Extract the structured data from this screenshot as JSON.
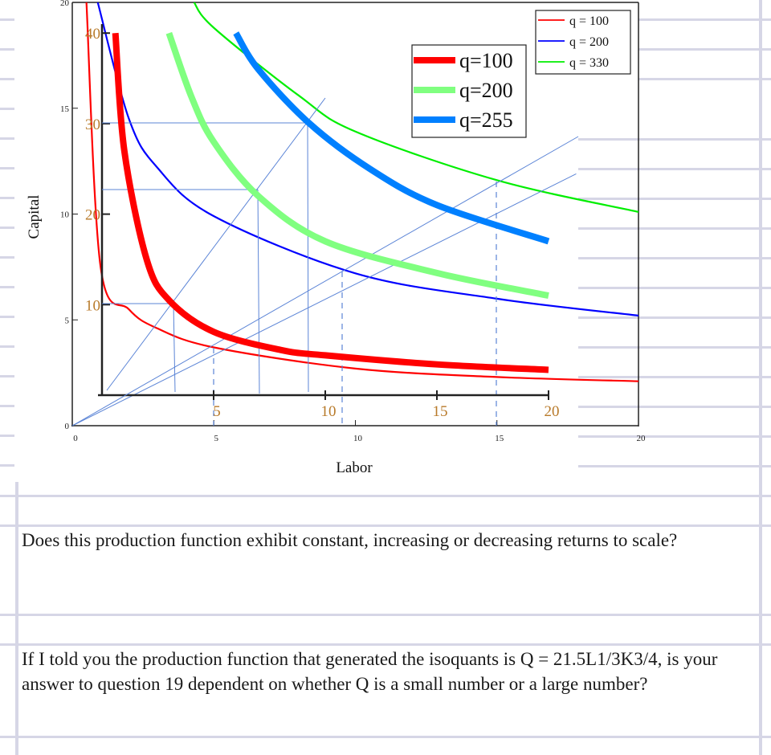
{
  "chart_data": [
    {
      "type": "line",
      "title": "",
      "xlabel": "Labor",
      "ylabel": "Capital",
      "xlim": [
        0,
        20
      ],
      "ylim": [
        0,
        20
      ],
      "x_ticks": [
        "0",
        "5",
        "10",
        "15",
        "20"
      ],
      "y_ticks": [
        "0",
        "5",
        "10",
        "15",
        "20"
      ],
      "grid": false,
      "legend_position": "top-right",
      "series": [
        {
          "name": "q = 100",
          "color": "#ff0000",
          "x": [
            0.5,
            1,
            2,
            3,
            5,
            10,
            15,
            20
          ],
          "y": [
            20,
            7.5,
            5.5,
            4.6,
            3.7,
            2.7,
            2.3,
            2.1
          ]
        },
        {
          "name": "q = 200",
          "color": "#0000ff",
          "x": [
            0.9,
            2,
            3,
            5,
            10,
            15,
            20
          ],
          "y": [
            20,
            14.5,
            12.2,
            9.9,
            7.2,
            6.0,
            5.2
          ]
        },
        {
          "name": "q = 330",
          "color": "#00ee00",
          "x": [
            4.3,
            5,
            8,
            10,
            15,
            20
          ],
          "y": [
            20,
            18.8,
            15.6,
            13.9,
            11.6,
            10.1
          ]
        }
      ],
      "guide_lines": [
        {
          "type": "ray",
          "from": [
            0,
            0
          ],
          "to": [
            17.8,
            11.9
          ]
        },
        {
          "type": "dashed-vertical",
          "x": 5
        },
        {
          "type": "dashed-vertical",
          "x": 10
        },
        {
          "type": "dashed-vertical",
          "x": 15
        }
      ]
    },
    {
      "type": "line",
      "title": "",
      "xlabel": "",
      "ylabel": "",
      "xlim": [
        0,
        20
      ],
      "ylim": [
        0,
        40
      ],
      "x_ticks": [
        "5",
        "10",
        "15",
        "20"
      ],
      "y_ticks": [
        "10",
        "20",
        "30",
        "40"
      ],
      "grid": false,
      "legend_position": "top-center",
      "series": [
        {
          "name": "q=100",
          "color": "#ff0000",
          "x": [
            0.6,
            1,
            2,
            3,
            5,
            8,
            10,
            15,
            20
          ],
          "y": [
            40,
            27,
            15,
            10.5,
            7,
            5,
            4.4,
            3.4,
            2.8
          ]
        },
        {
          "name": "q=200",
          "color": "#80ff80",
          "x": [
            3,
            4,
            5,
            7,
            10,
            15,
            20
          ],
          "y": [
            40,
            33,
            28,
            22,
            17,
            13.5,
            11
          ]
        },
        {
          "name": "q=255",
          "color": "#0080ff",
          "x": [
            6,
            7,
            9.3,
            12,
            15,
            20
          ],
          "y": [
            40,
            36,
            30,
            25,
            21,
            17
          ]
        }
      ],
      "guide_lines": [
        {
          "type": "ray",
          "from": [
            0.3,
            1.5
          ],
          "to": [
            10,
            33
          ]
        },
        {
          "type": "horizontal",
          "y": 10,
          "x_to": 3.2
        },
        {
          "type": "horizontal",
          "y": 22.4,
          "x_to": 7
        },
        {
          "type": "horizontal",
          "y": 30,
          "x_to": 9.3
        },
        {
          "type": "vertical",
          "x": 3.3
        },
        {
          "type": "vertical",
          "x": 7
        },
        {
          "type": "vertical",
          "x": 9.3
        }
      ]
    }
  ],
  "chart": {
    "outer": {
      "y_axis_label": "Capital",
      "x_axis_label": "Labor",
      "x_ticks": [
        {
          "v": 0,
          "label": "0"
        },
        {
          "v": 5,
          "label": "5"
        },
        {
          "v": 10,
          "label": "10"
        },
        {
          "v": 15,
          "label": "15"
        },
        {
          "v": 20,
          "label": "20"
        }
      ],
      "y_ticks": [
        {
          "v": 0,
          "label": "0"
        },
        {
          "v": 5,
          "label": "5"
        },
        {
          "v": 10,
          "label": "10"
        },
        {
          "v": 15,
          "label": "15"
        },
        {
          "v": 20,
          "label": "20"
        }
      ],
      "legend": [
        {
          "label": "q = 100",
          "color": "#ff0000"
        },
        {
          "label": "q = 200",
          "color": "#0000ff"
        },
        {
          "label": "q = 330",
          "color": "#00ee00"
        }
      ]
    },
    "inner": {
      "x_ticks": [
        {
          "v": 5,
          "label": "5"
        },
        {
          "v": 10,
          "label": "10"
        },
        {
          "v": 15,
          "label": "15"
        },
        {
          "v": 20,
          "label": "20"
        }
      ],
      "y_ticks": [
        {
          "v": 10,
          "label": "10"
        },
        {
          "v": 20,
          "label": "20"
        },
        {
          "v": 30,
          "label": "30"
        },
        {
          "v": 40,
          "label": "40"
        }
      ],
      "legend": [
        {
          "label": "q=100",
          "color": "#ff0000"
        },
        {
          "label": "q=200",
          "color": "#80ff80"
        },
        {
          "label": "q=255",
          "color": "#0080ff"
        }
      ]
    },
    "guide_color": "#5b84d6",
    "tick_label_color": "#b87a2a"
  },
  "questions": [
    {
      "text": "Does this production function exhibit constant, increasing or decreasing returns to scale?"
    },
    {
      "text": "If I told you the production function that generated the isoquants is Q = 21.5L1/3K3/4, is your answer to question 19 dependent on whether Q is a small number or a large number?"
    }
  ]
}
